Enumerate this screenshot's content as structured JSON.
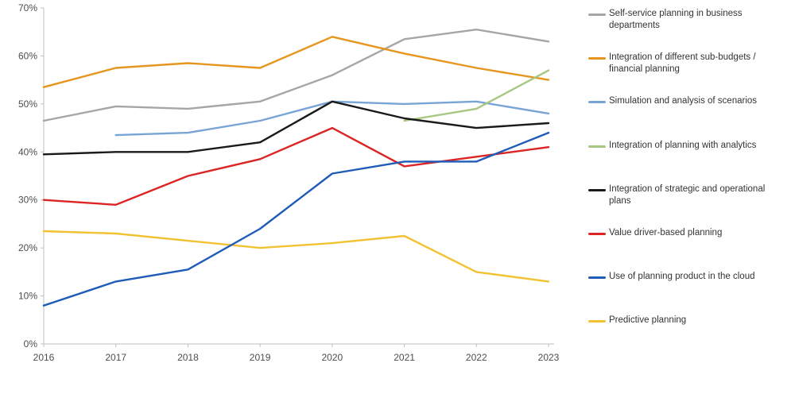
{
  "chart_data": {
    "type": "line",
    "title": "",
    "xlabel": "",
    "ylabel": "",
    "x_tick_labels": [
      "2016",
      "2017",
      "2018",
      "2019",
      "2020",
      "2021",
      "2022",
      "2023"
    ],
    "y_tick_labels": [
      "0%",
      "10%",
      "20%",
      "30%",
      "40%",
      "50%",
      "60%",
      "70%"
    ],
    "ylim": [
      0,
      70
    ],
    "y_unit": "%",
    "grid": false,
    "legend_position": "right",
    "series": [
      {
        "name": "Self-service planning in business departments",
        "color": "#a6a6a6",
        "values": [
          46.5,
          49.5,
          49,
          50.5,
          56,
          63.5,
          65.5,
          63
        ]
      },
      {
        "name": "Integration of different sub-budgets /  financial planning",
        "color": "#e6961e",
        "values": [
          53.5,
          57.5,
          58.5,
          57.5,
          64,
          60.5,
          57.5,
          55
        ]
      },
      {
        "name": "Simulation and analysis of scenarios",
        "color": "#78a4d6",
        "values": [
          null,
          43.5,
          44,
          46.5,
          50.5,
          50,
          50.5,
          48
        ]
      },
      {
        "name": "Integration of planning with analytics",
        "color": "#a7c783",
        "values": [
          null,
          null,
          null,
          null,
          null,
          46.5,
          49,
          57
        ]
      },
      {
        "name": "Integration of strategic and operational plans",
        "color": "#1a1a1a",
        "values": [
          39.5,
          40,
          40,
          42,
          50.5,
          47,
          45,
          46
        ]
      },
      {
        "name": "Value driver-based planning",
        "color": "#dd2424",
        "values": [
          30,
          29,
          35,
          38.5,
          45,
          37,
          39,
          41
        ]
      },
      {
        "name": "Use of planning product in the cloud",
        "color": "#1f5cb8",
        "values": [
          8,
          13,
          15.5,
          24,
          35.5,
          38,
          38,
          44
        ]
      },
      {
        "name": "Predictive planning",
        "color": "#f2c233",
        "values": [
          23.5,
          23,
          21.5,
          20,
          21,
          22.5,
          15,
          13
        ]
      }
    ]
  }
}
